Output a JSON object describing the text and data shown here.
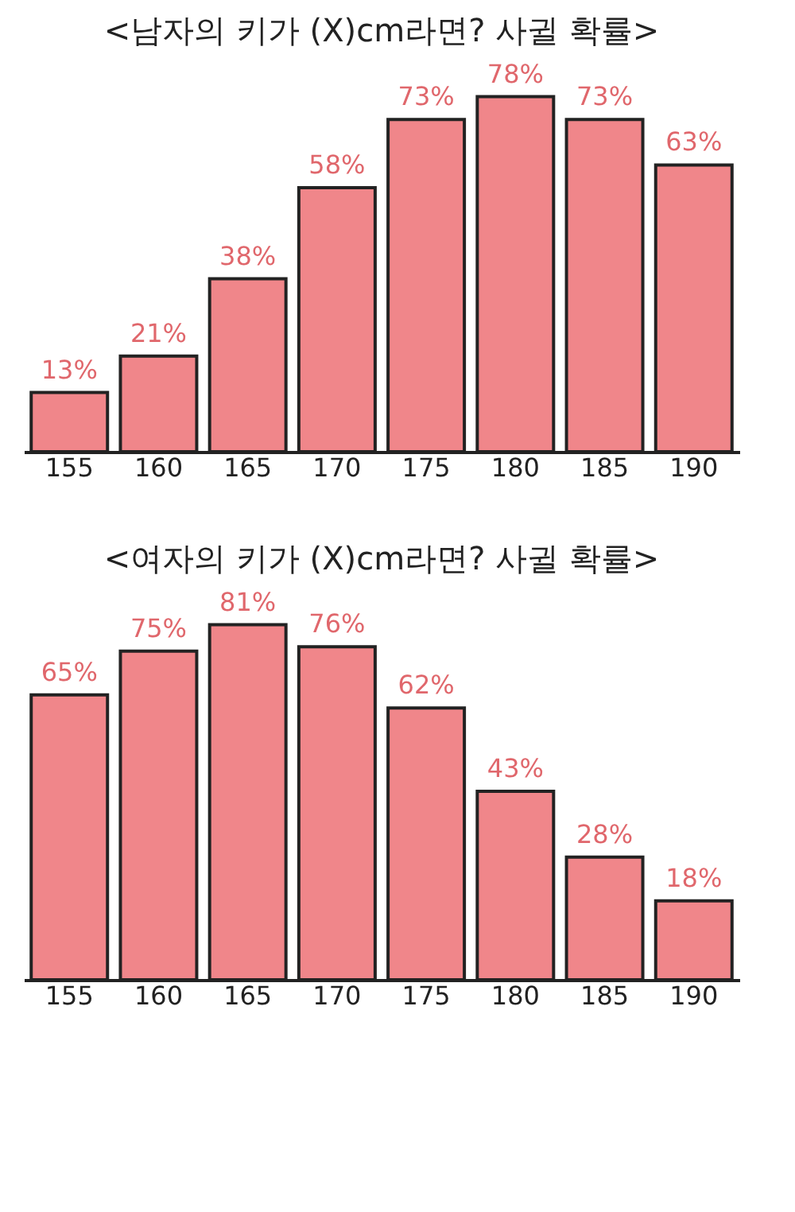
{
  "chart_data": [
    {
      "type": "bar",
      "title": "<남자의 키가 (X)cm라면? 사귈 확률>",
      "categories": [
        "155",
        "160",
        "165",
        "170",
        "175",
        "180",
        "185",
        "190"
      ],
      "values": [
        13,
        21,
        38,
        58,
        73,
        78,
        73,
        63
      ],
      "value_labels": [
        "13%",
        "21%",
        "38%",
        "58%",
        "73%",
        "78%",
        "73%",
        "63%"
      ],
      "color": "#f0868a",
      "tick_labels": "x"
    },
    {
      "type": "bar",
      "title": "<여자의 키가 (X)cm라면? 사귈 확률>",
      "categories": [
        "155",
        "160",
        "165",
        "170",
        "175",
        "180",
        "185",
        "190"
      ],
      "values": [
        65,
        75,
        81,
        76,
        62,
        43,
        28,
        18
      ],
      "value_labels": [
        "65%",
        "75%",
        "81%",
        "76%",
        "62%",
        "43%",
        "28%",
        "18%"
      ],
      "color": "#f0868a",
      "tick_labels": "x"
    }
  ]
}
